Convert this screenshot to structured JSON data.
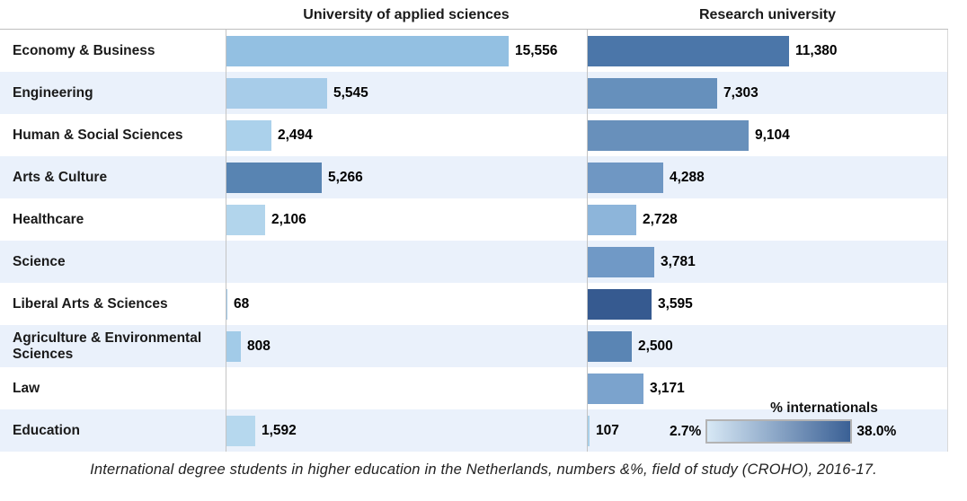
{
  "columns": [
    {
      "label": "University of applied sciences"
    },
    {
      "label": "Research university"
    }
  ],
  "legend": {
    "title": "% internationals",
    "min_label": "2.7%",
    "max_label": "38.0%",
    "min_color": "#d7e8f5",
    "max_color": "#3a6095"
  },
  "caption": "International degree students in higher education in the Netherlands, numbers &%, field of study (CROHO), 2016-17.",
  "chart_data": {
    "type": "bar",
    "orientation": "horizontal",
    "title": "",
    "xlabel": "",
    "ylabel": "",
    "xlim": [
      0,
      19800
    ],
    "grid": false,
    "legend_position": "bottom-right",
    "color_meaning": "bar color encodes % internationals from 2.7% (light blue) to 38.0% (dark blue)",
    "categories": [
      "Economy & Business",
      "Engineering",
      "Human & Social Sciences",
      "Arts & Culture",
      "Healthcare",
      "Science",
      "Liberal Arts & Sciences",
      "Agriculture & Environmental Sciences",
      "Law",
      "Education"
    ],
    "series": [
      {
        "name": "University of applied sciences",
        "values": [
          15556,
          5545,
          2494,
          5266,
          2106,
          null,
          68,
          808,
          null,
          1592
        ],
        "labels": [
          "15,556",
          "5,545",
          "2,494",
          "5,266",
          "2,106",
          null,
          "68",
          "808",
          null,
          "1,592"
        ],
        "colors": [
          "#93c0e2",
          "#a7cce9",
          "#abd1eb",
          "#5884b2",
          "#b2d5ec",
          null,
          "#9fc7e6",
          "#a2cbe8",
          null,
          "#b6d8ee"
        ]
      },
      {
        "name": "Research university",
        "values": [
          11380,
          7303,
          9104,
          4288,
          2728,
          3781,
          3595,
          2500,
          3171,
          107
        ],
        "labels": [
          "11,380",
          "7,303",
          "9,104",
          "4,288",
          "2,728",
          "3,781",
          "3,595",
          "2,500",
          "3,171",
          "107"
        ],
        "colors": [
          "#4b76a9",
          "#6690bc",
          "#6890bb",
          "#6f97c3",
          "#8db5da",
          "#7099c6",
          "#365a90",
          "#5a85b4",
          "#7ba3cd",
          "#a9d0e9"
        ]
      }
    ]
  }
}
